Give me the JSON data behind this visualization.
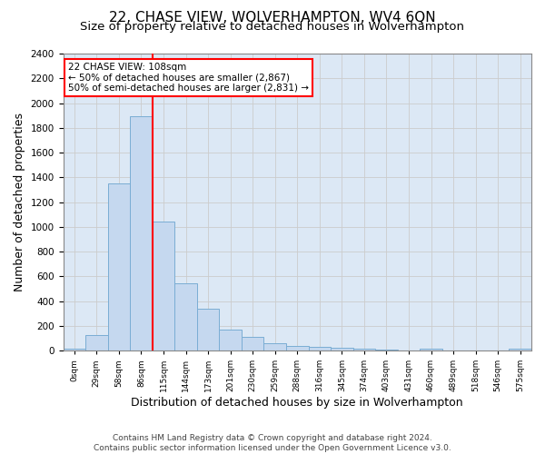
{
  "title": "22, CHASE VIEW, WOLVERHAMPTON, WV4 6QN",
  "subtitle": "Size of property relative to detached houses in Wolverhampton",
  "xlabel": "Distribution of detached houses by size in Wolverhampton",
  "ylabel": "Number of detached properties",
  "footer_line1": "Contains HM Land Registry data © Crown copyright and database right 2024.",
  "footer_line2": "Contains public sector information licensed under the Open Government Licence v3.0.",
  "bar_labels": [
    "0sqm",
    "29sqm",
    "58sqm",
    "86sqm",
    "115sqm",
    "144sqm",
    "173sqm",
    "201sqm",
    "230sqm",
    "259sqm",
    "288sqm",
    "316sqm",
    "345sqm",
    "374sqm",
    "403sqm",
    "431sqm",
    "460sqm",
    "489sqm",
    "518sqm",
    "546sqm",
    "575sqm"
  ],
  "bar_values": [
    15,
    125,
    1350,
    1890,
    1045,
    545,
    335,
    168,
    108,
    62,
    38,
    28,
    22,
    15,
    10,
    0,
    18,
    0,
    0,
    0,
    15
  ],
  "bar_color": "#c5d8ef",
  "bar_edge_color": "#7aadd4",
  "vline_color": "red",
  "annotation_text": "22 CHASE VIEW: 108sqm\n← 50% of detached houses are smaller (2,867)\n50% of semi-detached houses are larger (2,831) →",
  "annotation_box_color": "red",
  "annotation_facecolor": "white",
  "ylim": [
    0,
    2400
  ],
  "yticks": [
    0,
    200,
    400,
    600,
    800,
    1000,
    1200,
    1400,
    1600,
    1800,
    2000,
    2200,
    2400
  ],
  "grid_color": "#cccccc",
  "bg_color": "#dce8f5",
  "title_fontsize": 11,
  "subtitle_fontsize": 9.5,
  "xlabel_fontsize": 9,
  "ylabel_fontsize": 9,
  "footer_fontsize": 6.5,
  "annotation_fontsize": 7.5,
  "tick_labelsize": 7.5,
  "xtick_labelsize": 6.5
}
